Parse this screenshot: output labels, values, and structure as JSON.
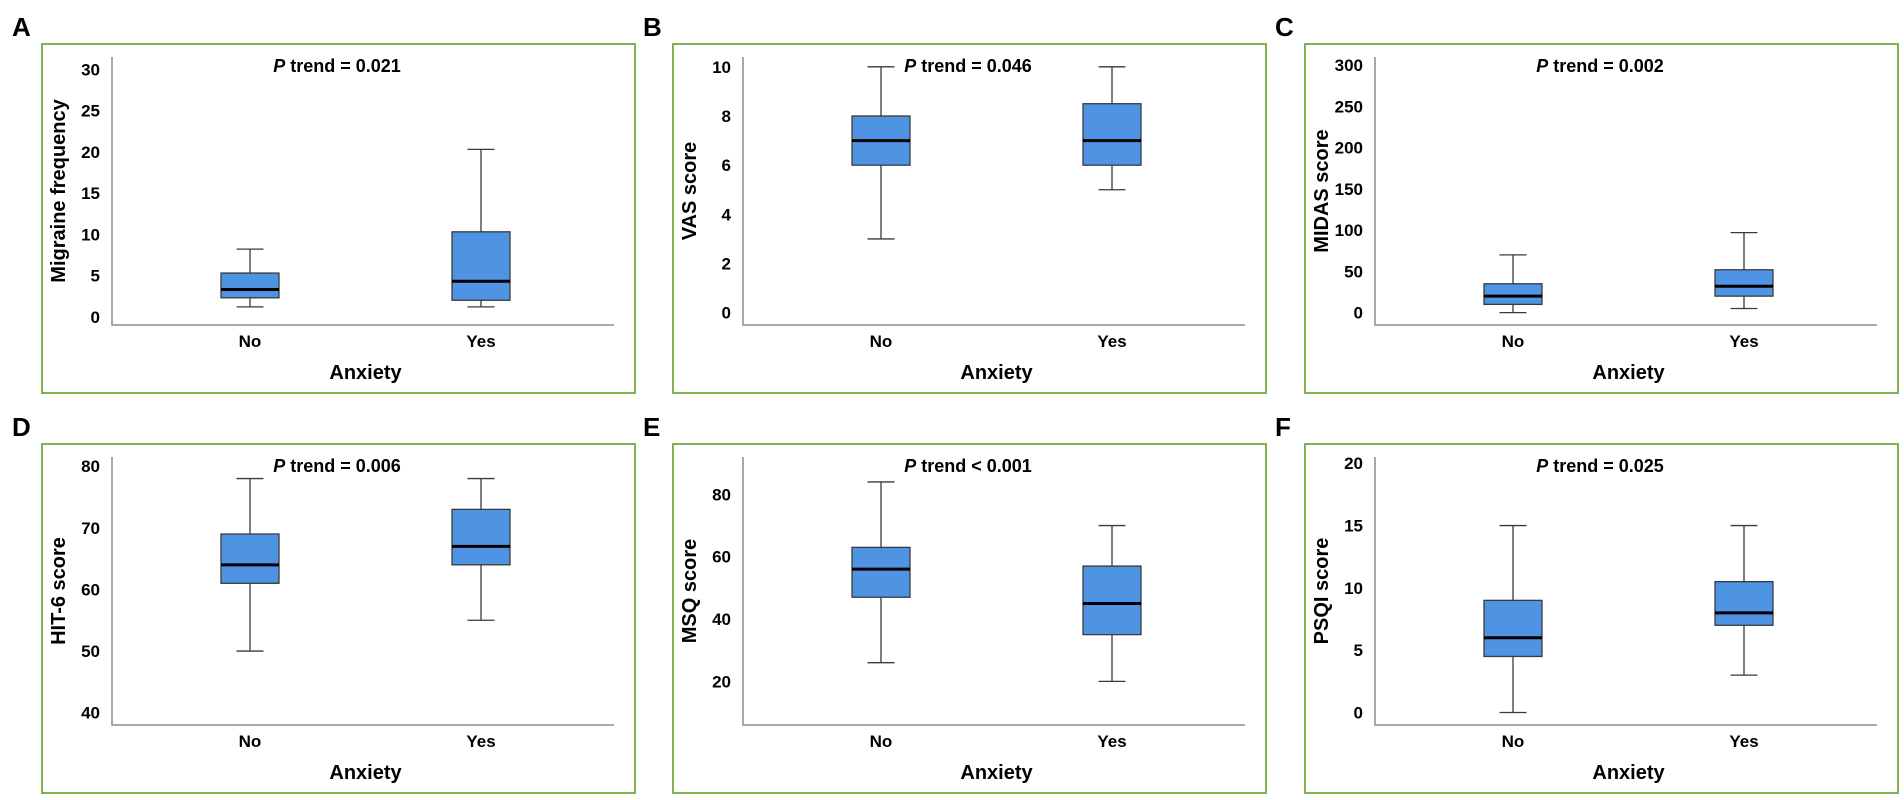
{
  "chart_data": [
    {
      "panel": "A",
      "type": "box",
      "ptrend_label": "P",
      "ptrend_text": " trend = 0.021",
      "ylabel": "Migraine frequency",
      "xlabel": "Anxiety",
      "categories": [
        "No",
        "Yes"
      ],
      "yticks": [
        0,
        5,
        10,
        15,
        20,
        25,
        30
      ],
      "ylim": [
        -1,
        31.5
      ],
      "boxes": [
        {
          "min": 1.2,
          "q1": 2.3,
          "median": 3.3,
          "q3": 5.3,
          "max": 8.2
        },
        {
          "min": 1.2,
          "q1": 2.0,
          "median": 4.3,
          "q3": 10.3,
          "max": 20.3
        }
      ]
    },
    {
      "panel": "B",
      "type": "box",
      "ptrend_label": "P",
      "ptrend_text": " trend = 0.046",
      "ylabel": "VAS score",
      "xlabel": "Anxiety",
      "categories": [
        "No",
        "Yes"
      ],
      "yticks": [
        0,
        2,
        4,
        6,
        8,
        10
      ],
      "ylim": [
        -0.5,
        10.4
      ],
      "boxes": [
        {
          "min": 3,
          "q1": 6,
          "median": 7,
          "q3": 8,
          "max": 10
        },
        {
          "min": 5,
          "q1": 6,
          "median": 7,
          "q3": 8.5,
          "max": 10
        }
      ]
    },
    {
      "panel": "C",
      "type": "box",
      "ptrend_label": "P",
      "ptrend_text": " trend = 0.002",
      "ylabel": "MIDAS score",
      "xlabel": "Anxiety",
      "categories": [
        "No",
        "Yes"
      ],
      "yticks": [
        0,
        50,
        100,
        150,
        200,
        250,
        300
      ],
      "ylim": [
        -15,
        310
      ],
      "boxes": [
        {
          "min": 0,
          "q1": 10,
          "median": 20,
          "q3": 35,
          "max": 70
        },
        {
          "min": 5,
          "q1": 20,
          "median": 32,
          "q3": 52,
          "max": 97
        }
      ]
    },
    {
      "panel": "D",
      "type": "box",
      "ptrend_label": "P",
      "ptrend_text": " trend = 0.006",
      "ylabel": "HIT-6 score",
      "xlabel": "Anxiety",
      "categories": [
        "No",
        "Yes"
      ],
      "yticks": [
        40,
        50,
        60,
        70,
        80
      ],
      "ylim": [
        38,
        81.5
      ],
      "boxes": [
        {
          "min": 50,
          "q1": 61,
          "median": 64,
          "q3": 69,
          "max": 78
        },
        {
          "min": 55,
          "q1": 64,
          "median": 67,
          "q3": 73,
          "max": 78
        }
      ]
    },
    {
      "panel": "E",
      "type": "box",
      "ptrend_label": "P",
      "ptrend_text": " trend < 0.001",
      "ylabel": "MSQ score",
      "xlabel": "Anxiety",
      "categories": [
        "No",
        "Yes"
      ],
      "yticks": [
        20,
        40,
        60,
        80
      ],
      "ylim": [
        6,
        92
      ],
      "boxes": [
        {
          "min": 26,
          "q1": 47,
          "median": 56,
          "q3": 63,
          "max": 84
        },
        {
          "min": 20,
          "q1": 35,
          "median": 45,
          "q3": 57,
          "max": 70
        }
      ]
    },
    {
      "panel": "F",
      "type": "box",
      "ptrend_label": "P",
      "ptrend_text": " trend = 0.025",
      "ylabel": "PSQI score",
      "xlabel": "Anxiety",
      "categories": [
        "No",
        "Yes"
      ],
      "yticks": [
        0,
        5,
        10,
        15,
        20
      ],
      "ylim": [
        -1,
        20.5
      ],
      "boxes": [
        {
          "min": 0,
          "q1": 4.5,
          "median": 6,
          "q3": 9,
          "max": 15
        },
        {
          "min": 3,
          "q1": 7,
          "median": 8,
          "q3": 10.5,
          "max": 15
        }
      ]
    }
  ]
}
